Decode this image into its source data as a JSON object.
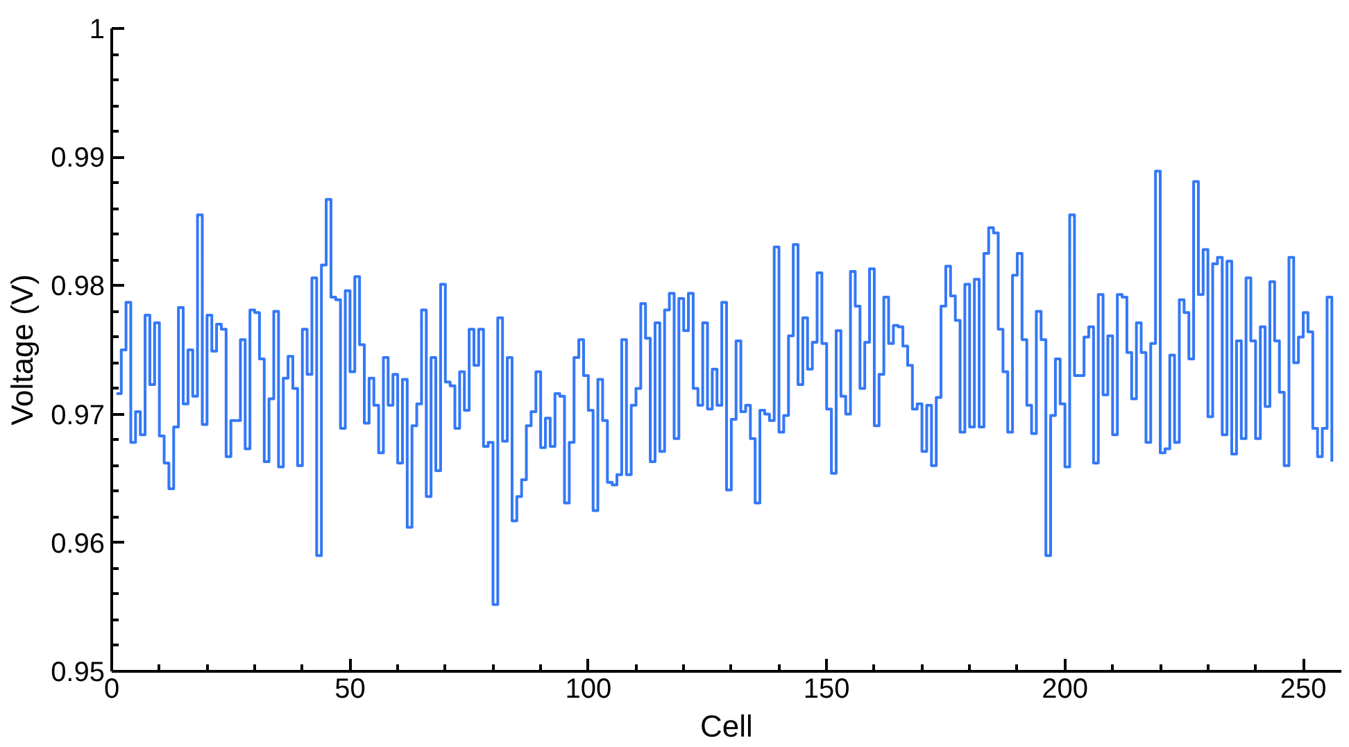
{
  "chart_data": {
    "type": "step",
    "xlabel": "Cell",
    "ylabel": "Voltage (V)",
    "color": "#3478f6",
    "xlim": [
      0,
      258
    ],
    "ylim": [
      0.95,
      1
    ],
    "xticks": [
      0,
      50,
      100,
      150,
      200,
      250
    ],
    "yticks": [
      0.95,
      0.96,
      0.97,
      0.98,
      0.99,
      1
    ],
    "x": [
      1,
      2,
      3,
      4,
      5,
      6,
      7,
      8,
      9,
      10,
      11,
      12,
      13,
      14,
      15,
      16,
      17,
      18,
      19,
      20,
      21,
      22,
      23,
      24,
      25,
      26,
      27,
      28,
      29,
      30,
      31,
      32,
      33,
      34,
      35,
      36,
      37,
      38,
      39,
      40,
      41,
      42,
      43,
      44,
      45,
      46,
      47,
      48,
      49,
      50,
      51,
      52,
      53,
      54,
      55,
      56,
      57,
      58,
      59,
      60,
      61,
      62,
      63,
      64,
      65,
      66,
      67,
      68,
      69,
      70,
      71,
      72,
      73,
      74,
      75,
      76,
      77,
      78,
      79,
      80,
      81,
      82,
      83,
      84,
      85,
      86,
      87,
      88,
      89,
      90,
      91,
      92,
      93,
      94,
      95,
      96,
      97,
      98,
      99,
      100,
      101,
      102,
      103,
      104,
      105,
      106,
      107,
      108,
      109,
      110,
      111,
      112,
      113,
      114,
      115,
      116,
      117,
      118,
      119,
      120,
      121,
      122,
      123,
      124,
      125,
      126,
      127,
      128,
      129,
      130,
      131,
      132,
      133,
      134,
      135,
      136,
      137,
      138,
      139,
      140,
      141,
      142,
      143,
      144,
      145,
      146,
      147,
      148,
      149,
      150,
      151,
      152,
      153,
      154,
      155,
      156,
      157,
      158,
      159,
      160,
      161,
      162,
      163,
      164,
      165,
      166,
      167,
      168,
      169,
      170,
      171,
      172,
      173,
      174,
      175,
      176,
      177,
      178,
      179,
      180,
      181,
      182,
      183,
      184,
      185,
      186,
      187,
      188,
      189,
      190,
      191,
      192,
      193,
      194,
      195,
      196,
      197,
      198,
      199,
      200,
      201,
      202,
      203,
      204,
      205,
      206,
      207,
      208,
      209,
      210,
      211,
      212,
      213,
      214,
      215,
      216,
      217,
      218,
      219,
      220,
      221,
      222,
      223,
      224,
      225,
      226,
      227,
      228,
      229,
      230,
      231,
      232,
      233,
      234,
      235,
      236,
      237,
      238,
      239,
      240,
      241,
      242,
      243,
      244,
      245,
      246,
      247,
      248,
      249,
      250,
      251,
      252,
      253,
      254,
      255,
      256
    ],
    "values": [
      0.9716,
      0.975,
      0.9787,
      0.9678,
      0.9702,
      0.9684,
      0.9777,
      0.9723,
      0.9771,
      0.9683,
      0.9662,
      0.9642,
      0.969,
      0.9783,
      0.9708,
      0.975,
      0.9714,
      0.9855,
      0.9692,
      0.9777,
      0.9749,
      0.977,
      0.9766,
      0.9667,
      0.9695,
      0.9695,
      0.9758,
      0.9673,
      0.9781,
      0.9779,
      0.9743,
      0.9663,
      0.9712,
      0.978,
      0.9659,
      0.9728,
      0.9745,
      0.972,
      0.966,
      0.9766,
      0.9731,
      0.9806,
      0.959,
      0.9816,
      0.9867,
      0.9791,
      0.9789,
      0.9689,
      0.9796,
      0.9733,
      0.9807,
      0.9754,
      0.9693,
      0.9728,
      0.9707,
      0.967,
      0.9744,
      0.9707,
      0.9731,
      0.9662,
      0.9727,
      0.9612,
      0.9691,
      0.9708,
      0.9781,
      0.9636,
      0.9744,
      0.9656,
      0.9801,
      0.9725,
      0.9722,
      0.9689,
      0.9733,
      0.9703,
      0.9766,
      0.9738,
      0.9766,
      0.9675,
      0.9678,
      0.9552,
      0.9775,
      0.9679,
      0.9744,
      0.9617,
      0.9636,
      0.9649,
      0.9691,
      0.9702,
      0.9733,
      0.9674,
      0.9697,
      0.9675,
      0.9716,
      0.9714,
      0.9631,
      0.9678,
      0.9744,
      0.9758,
      0.973,
      0.9703,
      0.9625,
      0.9727,
      0.9695,
      0.9647,
      0.9645,
      0.9653,
      0.9758,
      0.9653,
      0.9707,
      0.972,
      0.9786,
      0.9759,
      0.9663,
      0.9771,
      0.9671,
      0.9781,
      0.9794,
      0.9681,
      0.979,
      0.9765,
      0.9794,
      0.972,
      0.9707,
      0.9771,
      0.9704,
      0.9735,
      0.9707,
      0.9787,
      0.9641,
      0.9696,
      0.9757,
      0.9702,
      0.9707,
      0.9681,
      0.9631,
      0.9703,
      0.97,
      0.9695,
      0.983,
      0.9686,
      0.9699,
      0.9761,
      0.9832,
      0.9723,
      0.9775,
      0.9735,
      0.9756,
      0.981,
      0.9755,
      0.9704,
      0.9654,
      0.9765,
      0.9714,
      0.97,
      0.9811,
      0.9784,
      0.972,
      0.9756,
      0.9813,
      0.9691,
      0.9731,
      0.9791,
      0.9755,
      0.9769,
      0.9768,
      0.9753,
      0.9738,
      0.9704,
      0.9708,
      0.9671,
      0.9707,
      0.966,
      0.9713,
      0.9784,
      0.9815,
      0.9792,
      0.9773,
      0.9686,
      0.9801,
      0.969,
      0.9805,
      0.969,
      0.9825,
      0.9845,
      0.9841,
      0.9766,
      0.9733,
      0.9686,
      0.9808,
      0.9825,
      0.9758,
      0.9707,
      0.9685,
      0.978,
      0.9758,
      0.959,
      0.9699,
      0.9743,
      0.9708,
      0.9659,
      0.9855,
      0.973,
      0.973,
      0.976,
      0.9768,
      0.9662,
      0.9793,
      0.9715,
      0.9761,
      0.9684,
      0.9793,
      0.9791,
      0.9748,
      0.9712,
      0.9771,
      0.9748,
      0.9678,
      0.9755,
      0.9889,
      0.967,
      0.9673,
      0.9746,
      0.9678,
      0.9789,
      0.9779,
      0.9743,
      0.9881,
      0.9793,
      0.9828,
      0.9698,
      0.9817,
      0.9822,
      0.9684,
      0.9819,
      0.9669,
      0.9757,
      0.9681,
      0.9806,
      0.9757,
      0.9681,
      0.9768,
      0.9706,
      0.9803,
      0.9757,
      0.9717,
      0.966,
      0.9822,
      0.974,
      0.976,
      0.9779,
      0.9764,
      0.9689,
      0.9667,
      0.9689,
      0.9791,
      0.9663
    ]
  }
}
